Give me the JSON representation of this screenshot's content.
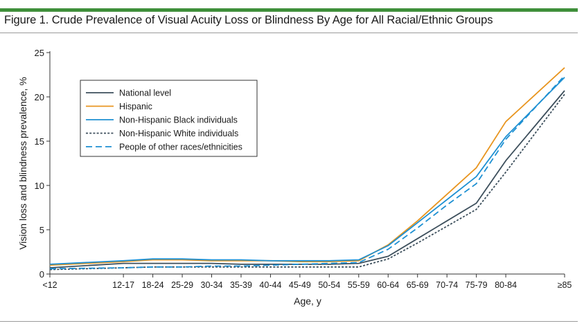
{
  "figure": {
    "title": "Figure 1. Crude Prevalence of Visual Acuity Loss or Blindness By Age for All Racial/Ethnic Groups"
  },
  "colors": {
    "national": "#3d4f5c",
    "hispanic": "#e8951f",
    "black": "#1e90d2",
    "white": "#3d4f5c",
    "other": "#1e90d2"
  },
  "chart_data": {
    "type": "line",
    "xlabel": "Age, y",
    "ylabel": "Vision loss and blindness prevalence, %",
    "ylim": [
      0,
      25
    ],
    "yticks": [
      0,
      5,
      10,
      15,
      20,
      25
    ],
    "categories": [
      "<12",
      "12-17",
      "18-24",
      "25-29",
      "30-34",
      "35-39",
      "40-44",
      "45-49",
      "50-54",
      "55-59",
      "60-64",
      "65-69",
      "70-74",
      "75-79",
      "80-84",
      "≥85"
    ],
    "x_positions": [
      0,
      1.5,
      2.1,
      2.7,
      3.3,
      3.9,
      4.5,
      5.1,
      5.7,
      6.3,
      6.9,
      7.5,
      8.1,
      8.7,
      9.3,
      10.5
    ],
    "legend_position": "top-left",
    "grid": false,
    "series": [
      {
        "name": "National level",
        "color_key": "national",
        "dash": "solid",
        "values": [
          0.7,
          1.2,
          1.2,
          1.2,
          1.2,
          1.1,
          1.1,
          1.1,
          1.1,
          1.2,
          2.0,
          4.0,
          6.0,
          8.0,
          12.8,
          20.7
        ]
      },
      {
        "name": "Hispanic",
        "color_key": "hispanic",
        "dash": "solid",
        "values": [
          1.0,
          1.4,
          1.6,
          1.6,
          1.5,
          1.5,
          1.5,
          1.4,
          1.4,
          1.5,
          3.3,
          6.0,
          9.0,
          12.0,
          17.2,
          23.3
        ]
      },
      {
        "name": "Non-Hispanic Black individuals",
        "color_key": "black",
        "dash": "solid",
        "values": [
          1.1,
          1.5,
          1.7,
          1.7,
          1.6,
          1.6,
          1.5,
          1.5,
          1.5,
          1.6,
          3.2,
          5.8,
          8.4,
          11.0,
          15.5,
          22.2
        ]
      },
      {
        "name": "Non-Hispanic White individuals",
        "color_key": "white",
        "dash": "dotted",
        "values": [
          0.5,
          0.7,
          0.8,
          0.8,
          0.8,
          0.8,
          0.8,
          0.8,
          0.8,
          0.8,
          1.7,
          3.5,
          5.4,
          7.3,
          11.5,
          20.3
        ]
      },
      {
        "name": "People of other races/ethnicities",
        "color_key": "other",
        "dash": "dashed",
        "values": [
          0.6,
          0.7,
          0.8,
          0.8,
          0.9,
          0.9,
          1.0,
          1.1,
          1.2,
          1.3,
          2.8,
          5.2,
          7.8,
          10.2,
          15.2,
          22.4
        ]
      }
    ]
  }
}
